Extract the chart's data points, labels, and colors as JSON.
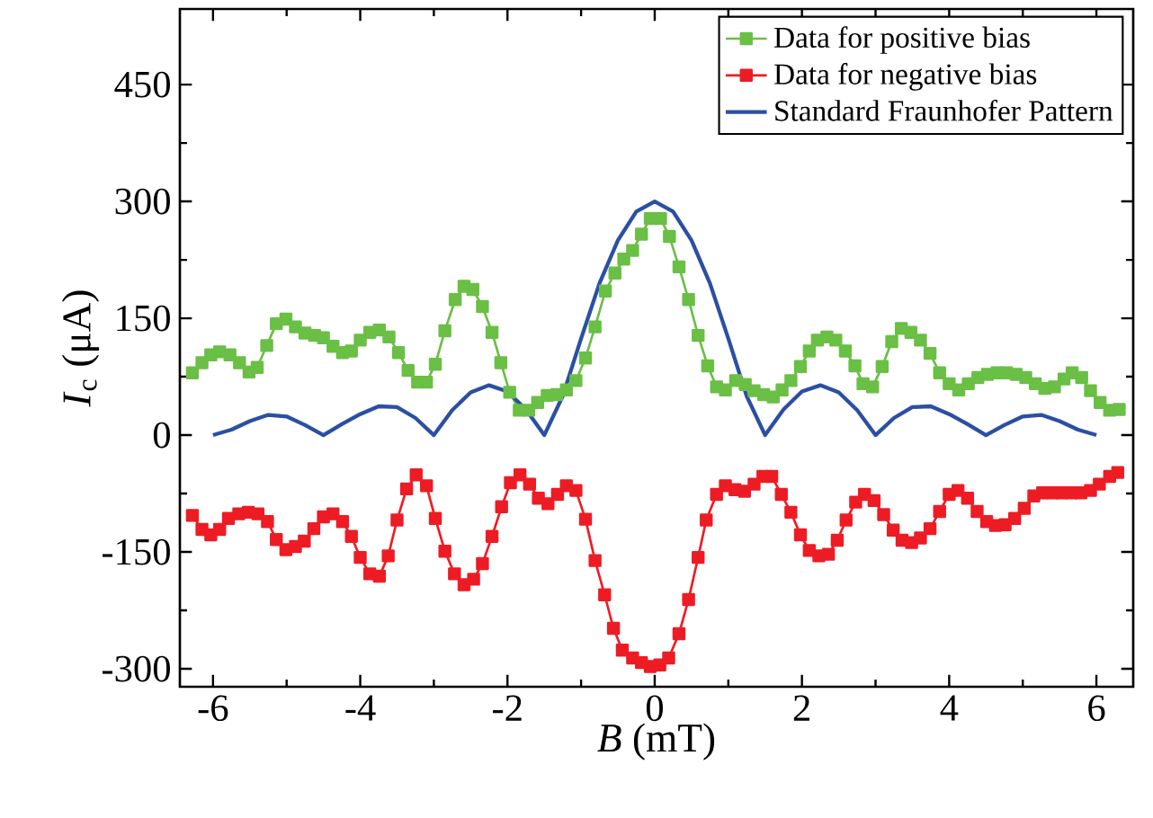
{
  "chart_data": {
    "type": "line",
    "xlabel": "*B* (mT)",
    "ylabel": "*I*$_{c}$ (μA)",
    "xlim": [
      -6.45,
      6.5
    ],
    "ylim": [
      -323,
      547
    ],
    "xticks": [
      -6,
      -4,
      -2,
      0,
      2,
      4,
      6
    ],
    "yticks": [
      -300,
      -150,
      0,
      150,
      300,
      450
    ],
    "legend": "top right",
    "grid": false,
    "series": [
      {
        "name": "Data for positive bias",
        "color": "#6abf45",
        "marker": "square",
        "x": [
          -6.28,
          -6.15,
          -6.03,
          -5.91,
          -5.77,
          -5.64,
          -5.51,
          -5.4,
          -5.27,
          -5.14,
          -5.01,
          -4.88,
          -4.75,
          -4.62,
          -4.5,
          -4.37,
          -4.24,
          -4.12,
          -4.0,
          -3.87,
          -3.74,
          -3.61,
          -3.48,
          -3.35,
          -3.22,
          -3.1,
          -2.98,
          -2.85,
          -2.71,
          -2.59,
          -2.47,
          -2.34,
          -2.21,
          -2.09,
          -1.97,
          -1.84,
          -1.71,
          -1.59,
          -1.46,
          -1.33,
          -1.2,
          -1.07,
          -0.94,
          -0.81,
          -0.67,
          -0.54,
          -0.42,
          -0.3,
          -0.18,
          -0.06,
          0.08,
          0.2,
          0.33,
          0.46,
          0.59,
          0.72,
          0.84,
          0.96,
          1.1,
          1.23,
          1.35,
          1.48,
          1.61,
          1.73,
          1.85,
          1.98,
          2.1,
          2.21,
          2.34,
          2.46,
          2.59,
          2.72,
          2.83,
          2.96,
          3.09,
          3.22,
          3.35,
          3.48,
          3.61,
          3.74,
          3.87,
          4.0,
          4.13,
          4.26,
          4.39,
          4.52,
          4.65,
          4.78,
          4.91,
          5.04,
          5.17,
          5.3,
          5.43,
          5.56,
          5.67,
          5.8,
          5.92,
          6.05,
          6.18,
          6.31
        ],
        "values": [
          80,
          93,
          103,
          107,
          103,
          93,
          81,
          87,
          115,
          143,
          149,
          139,
          131,
          128,
          125,
          114,
          106,
          108,
          122,
          132,
          135,
          126,
          106,
          83,
          68,
          68,
          91,
          134,
          174,
          191,
          187,
          165,
          132,
          93,
          55,
          32,
          32,
          42,
          51,
          52,
          58,
          70,
          99,
          139,
          185,
          208,
          226,
          237,
          258,
          278,
          278,
          255,
          216,
          174,
          128,
          89,
          62,
          58,
          70,
          65,
          57,
          52,
          49,
          58,
          70,
          88,
          108,
          122,
          126,
          122,
          108,
          89,
          66,
          62,
          88,
          120,
          137,
          132,
          122,
          105,
          80,
          66,
          58,
          66,
          74,
          78,
          80,
          80,
          78,
          74,
          66,
          60,
          62,
          72,
          80,
          74,
          57,
          42,
          32,
          33
        ]
      },
      {
        "name": "Data for negative bias",
        "color": "#ed1c24",
        "marker": "square",
        "x": [
          -6.28,
          -6.15,
          -6.03,
          -5.91,
          -5.79,
          -5.65,
          -5.52,
          -5.39,
          -5.26,
          -5.14,
          -5.01,
          -4.88,
          -4.76,
          -4.63,
          -4.5,
          -4.37,
          -4.24,
          -4.12,
          -4.0,
          -3.87,
          -3.74,
          -3.62,
          -3.5,
          -3.37,
          -3.24,
          -3.1,
          -2.98,
          -2.85,
          -2.72,
          -2.59,
          -2.46,
          -2.34,
          -2.21,
          -2.08,
          -1.96,
          -1.83,
          -1.7,
          -1.58,
          -1.45,
          -1.32,
          -1.2,
          -1.07,
          -0.94,
          -0.81,
          -0.68,
          -0.56,
          -0.44,
          -0.3,
          -0.18,
          -0.06,
          0.07,
          0.19,
          0.33,
          0.46,
          0.59,
          0.7,
          0.84,
          0.96,
          1.09,
          1.22,
          1.35,
          1.47,
          1.59,
          1.72,
          1.85,
          1.98,
          2.1,
          2.23,
          2.36,
          2.48,
          2.6,
          2.73,
          2.85,
          2.98,
          3.11,
          3.24,
          3.36,
          3.49,
          3.61,
          3.74,
          3.87,
          4.0,
          4.12,
          4.25,
          4.38,
          4.51,
          4.63,
          4.76,
          4.89,
          5.02,
          5.15,
          5.27,
          5.4,
          5.53,
          5.66,
          5.79,
          5.92,
          6.04,
          6.18,
          6.29
        ],
        "values": [
          -103,
          -121,
          -128,
          -121,
          -107,
          -101,
          -99,
          -101,
          -111,
          -134,
          -147,
          -143,
          -136,
          -120,
          -105,
          -101,
          -111,
          -130,
          -157,
          -178,
          -181,
          -155,
          -109,
          -69,
          -51,
          -65,
          -107,
          -149,
          -178,
          -192,
          -185,
          -165,
          -130,
          -92,
          -61,
          -51,
          -63,
          -81,
          -88,
          -76,
          -65,
          -71,
          -108,
          -161,
          -205,
          -248,
          -276,
          -286,
          -292,
          -297,
          -295,
          -286,
          -255,
          -211,
          -157,
          -109,
          -76,
          -65,
          -70,
          -72,
          -63,
          -53,
          -53,
          -76,
          -99,
          -128,
          -148,
          -155,
          -153,
          -135,
          -109,
          -86,
          -76,
          -84,
          -102,
          -122,
          -135,
          -138,
          -132,
          -120,
          -98,
          -76,
          -71,
          -81,
          -98,
          -111,
          -116,
          -115,
          -107,
          -94,
          -78,
          -74,
          -74,
          -74,
          -74,
          -74,
          -71,
          -63,
          -53,
          -48
        ]
      },
      {
        "name": "Standard Fraunhofer Pattern",
        "color": "#2b4fa3",
        "marker": "none",
        "x": [
          -6,
          -5.75,
          -5.5,
          -5.25,
          -5,
          -4.75,
          -4.5,
          -4.25,
          -4,
          -3.75,
          -3.5,
          -3.25,
          -3,
          -2.75,
          -2.5,
          -2.25,
          -2,
          -1.75,
          -1.5,
          -1.25,
          -1,
          -0.75,
          -0.5,
          -0.25,
          0,
          0.25,
          0.5,
          0.75,
          1,
          1.25,
          1.5,
          1.75,
          2,
          2.25,
          2.5,
          2.75,
          3,
          3.25,
          3.5,
          3.75,
          4,
          4.25,
          4.5,
          4.75,
          5,
          5.25,
          5.5,
          5.75,
          6
        ],
        "values": [
          0,
          7,
          18,
          26,
          24,
          13,
          0,
          14,
          27,
          37,
          36,
          22,
          0,
          32,
          55,
          64,
          56,
          33,
          0,
          50,
          124,
          195,
          250,
          287,
          300,
          287,
          250,
          195,
          124,
          50,
          0,
          33,
          56,
          64,
          55,
          32,
          0,
          22,
          36,
          37,
          27,
          14,
          0,
          13,
          24,
          26,
          18,
          7,
          0
        ]
      }
    ]
  }
}
